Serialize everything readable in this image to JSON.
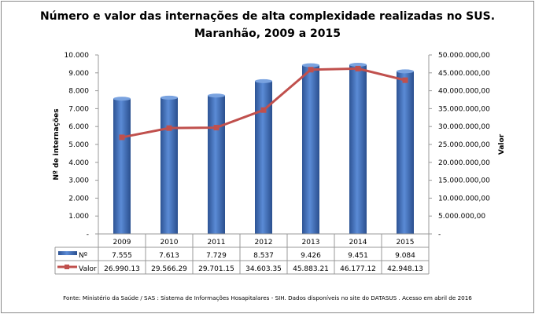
{
  "chart_data": {
    "type": "bar+line",
    "title": [
      "Número e valor das internações de alta complexidade realizadas no SUS.",
      "Maranhão, 2009 a 2015"
    ],
    "categories": [
      "2009",
      "2010",
      "2011",
      "2012",
      "2013",
      "2014",
      "2015"
    ],
    "ylabel_left": "Nº de internações",
    "ylabel_right": "Valor",
    "ylim_left": [
      0,
      10000
    ],
    "ylim_right": [
      0,
      50000000
    ],
    "left_ticks": [
      "-",
      "1.000",
      "2.000",
      "3.000",
      "4.000",
      "5.000",
      "6.000",
      "7.000",
      "8.000",
      "9.000",
      "10.000"
    ],
    "right_ticks": [
      "-",
      "5.000.000,00",
      "10.000.000,00",
      "15.000.000,00",
      "20.000.000,00",
      "25.000.000,00",
      "30.000.000,00",
      "35.000.000,00",
      "40.000.000,00",
      "45.000.000,00",
      "50.000.000,00"
    ],
    "series": [
      {
        "name": "Nº",
        "type": "bar",
        "axis": "left",
        "color": "#4472C4",
        "values": [
          7555,
          7613,
          7729,
          8537,
          9426,
          9451,
          9084
        ],
        "labels": [
          "7.555",
          "7.613",
          "7.729",
          "8.537",
          "9.426",
          "9.451",
          "9.084"
        ]
      },
      {
        "name": "Valor",
        "type": "line",
        "axis": "right",
        "color": "#C0504D",
        "values": [
          26990130,
          29566290,
          29701150,
          34603350,
          45883210,
          46177120,
          42948130
        ],
        "labels": [
          "26.990.13",
          "29.566.29",
          "29.701.15",
          "34.603.35",
          "45.883.21",
          "46.177.12",
          "42.948.13"
        ]
      }
    ],
    "data_table": true,
    "grid": false
  },
  "footer": "Fonte:  Ministério da Saúde  / SAS : Sistema de Informações Hosapitalares - SIH. Dados disponíveis no site do DATASUS . Acesso em abril de 2016"
}
